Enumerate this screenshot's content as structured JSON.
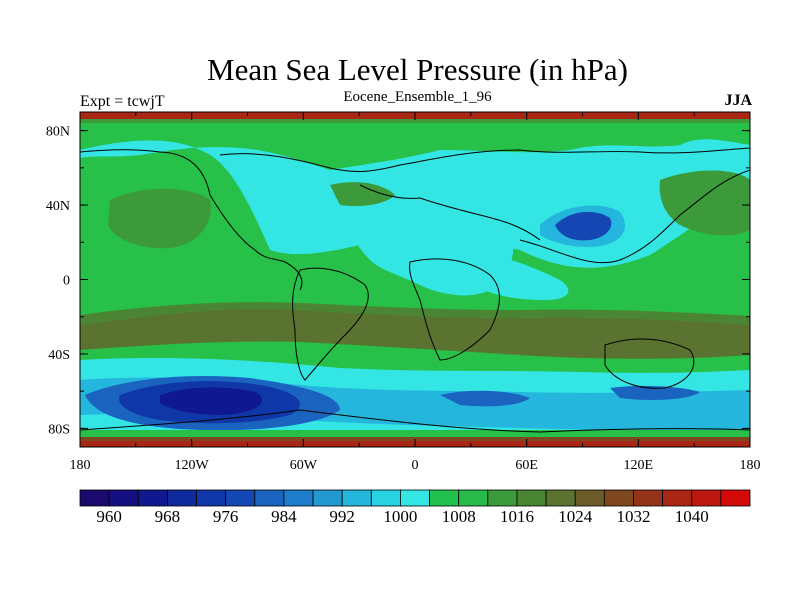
{
  "title": "Mean Sea Level Pressure (in hPa)",
  "experiment_label": "Expt = tcwjT",
  "ensemble_label": "Eocene_Ensemble_1_96",
  "season_label": "JJA",
  "map": {
    "projection": "cylindrical-equidistant",
    "lon_range": [
      -180,
      180
    ],
    "lat_range": [
      -90,
      90
    ],
    "x_ticks": [
      "180",
      "120W",
      "60W",
      "0",
      "60E",
      "120E",
      "180"
    ],
    "y_ticks": [
      "80N",
      "40N",
      "0",
      "40S",
      "80S"
    ],
    "x_tick_values": [
      -180,
      -120,
      -60,
      0,
      60,
      120,
      180
    ],
    "y_tick_values": [
      80,
      40,
      0,
      -40,
      -80
    ],
    "background_fill": "#27c048",
    "border_color": "#000000",
    "coastline_color": "#000000"
  },
  "colorbar": {
    "levels_labeled": [
      "960",
      "968",
      "976",
      "984",
      "992",
      "1000",
      "1008",
      "1016",
      "1024",
      "1032",
      "1040"
    ],
    "colors": [
      "#1a0a6e",
      "#140f80",
      "#101890",
      "#0f2a9c",
      "#1037a8",
      "#1446b4",
      "#1a64c0",
      "#1f7ecb",
      "#2399d2",
      "#24b6dc",
      "#28d2e0",
      "#33e6e4",
      "#22c04e",
      "#27b94a",
      "#3d9a3a",
      "#4a8533",
      "#5a7330",
      "#6a5d2a",
      "#7e4720",
      "#93341a",
      "#a92514",
      "#bd1810",
      "#d40a08"
    ]
  },
  "chart_data": {
    "type": "heatmap",
    "title": "Mean Sea Level Pressure (in hPa)",
    "subtitle": "Eocene_Ensemble_1_96",
    "season": "JJA",
    "experiment": "tcwjT",
    "xlabel": "",
    "ylabel": "",
    "x_ticks": [
      "180",
      "120W",
      "60W",
      "0",
      "60E",
      "120E",
      "180"
    ],
    "y_ticks": [
      "80N",
      "40N",
      "0",
      "40S",
      "80S"
    ],
    "colorbar_labels": [
      960,
      968,
      976,
      984,
      992,
      1000,
      1008,
      1016,
      1024,
      1032,
      1040
    ],
    "regions": [
      {
        "lon": [
          -180,
          180
        ],
        "lat": [
          -90,
          90
        ],
        "value_hPa": 1010
      },
      {
        "lon": [
          -120,
          -40
        ],
        "lat": [
          55,
          80
        ],
        "value_hPa": 1004
      },
      {
        "lon": [
          -60,
          60
        ],
        "lat": [
          -15,
          35
        ],
        "value_hPa": 1000
      },
      {
        "lon": [
          60,
          120
        ],
        "lat": [
          10,
          30
        ],
        "value_hPa": 1000
      },
      {
        "lon": [
          70,
          110
        ],
        "lat": [
          15,
          30
        ],
        "value_hPa": 990
      },
      {
        "lon": [
          -170,
          -140
        ],
        "lat": [
          20,
          45
        ],
        "value_hPa": 1016
      },
      {
        "lon": [
          -180,
          180
        ],
        "lat": [
          -45,
          -15
        ],
        "value_hPa": 1016
      },
      {
        "lon": [
          -180,
          180
        ],
        "lat": [
          -75,
          -50
        ],
        "value_hPa": 996
      },
      {
        "lon": [
          -150,
          -60
        ],
        "lat": [
          -72,
          -55
        ],
        "value_hPa": 980
      },
      {
        "lon": [
          -120,
          -90
        ],
        "lat": [
          -68,
          -58
        ],
        "value_hPa": 968
      },
      {
        "lon": [
          -180,
          180
        ],
        "lat": [
          -90,
          -80
        ],
        "value_hPa": 1028
      },
      {
        "lon": [
          -180,
          180
        ],
        "lat": [
          85,
          90
        ],
        "value_hPa": 1028
      }
    ]
  }
}
